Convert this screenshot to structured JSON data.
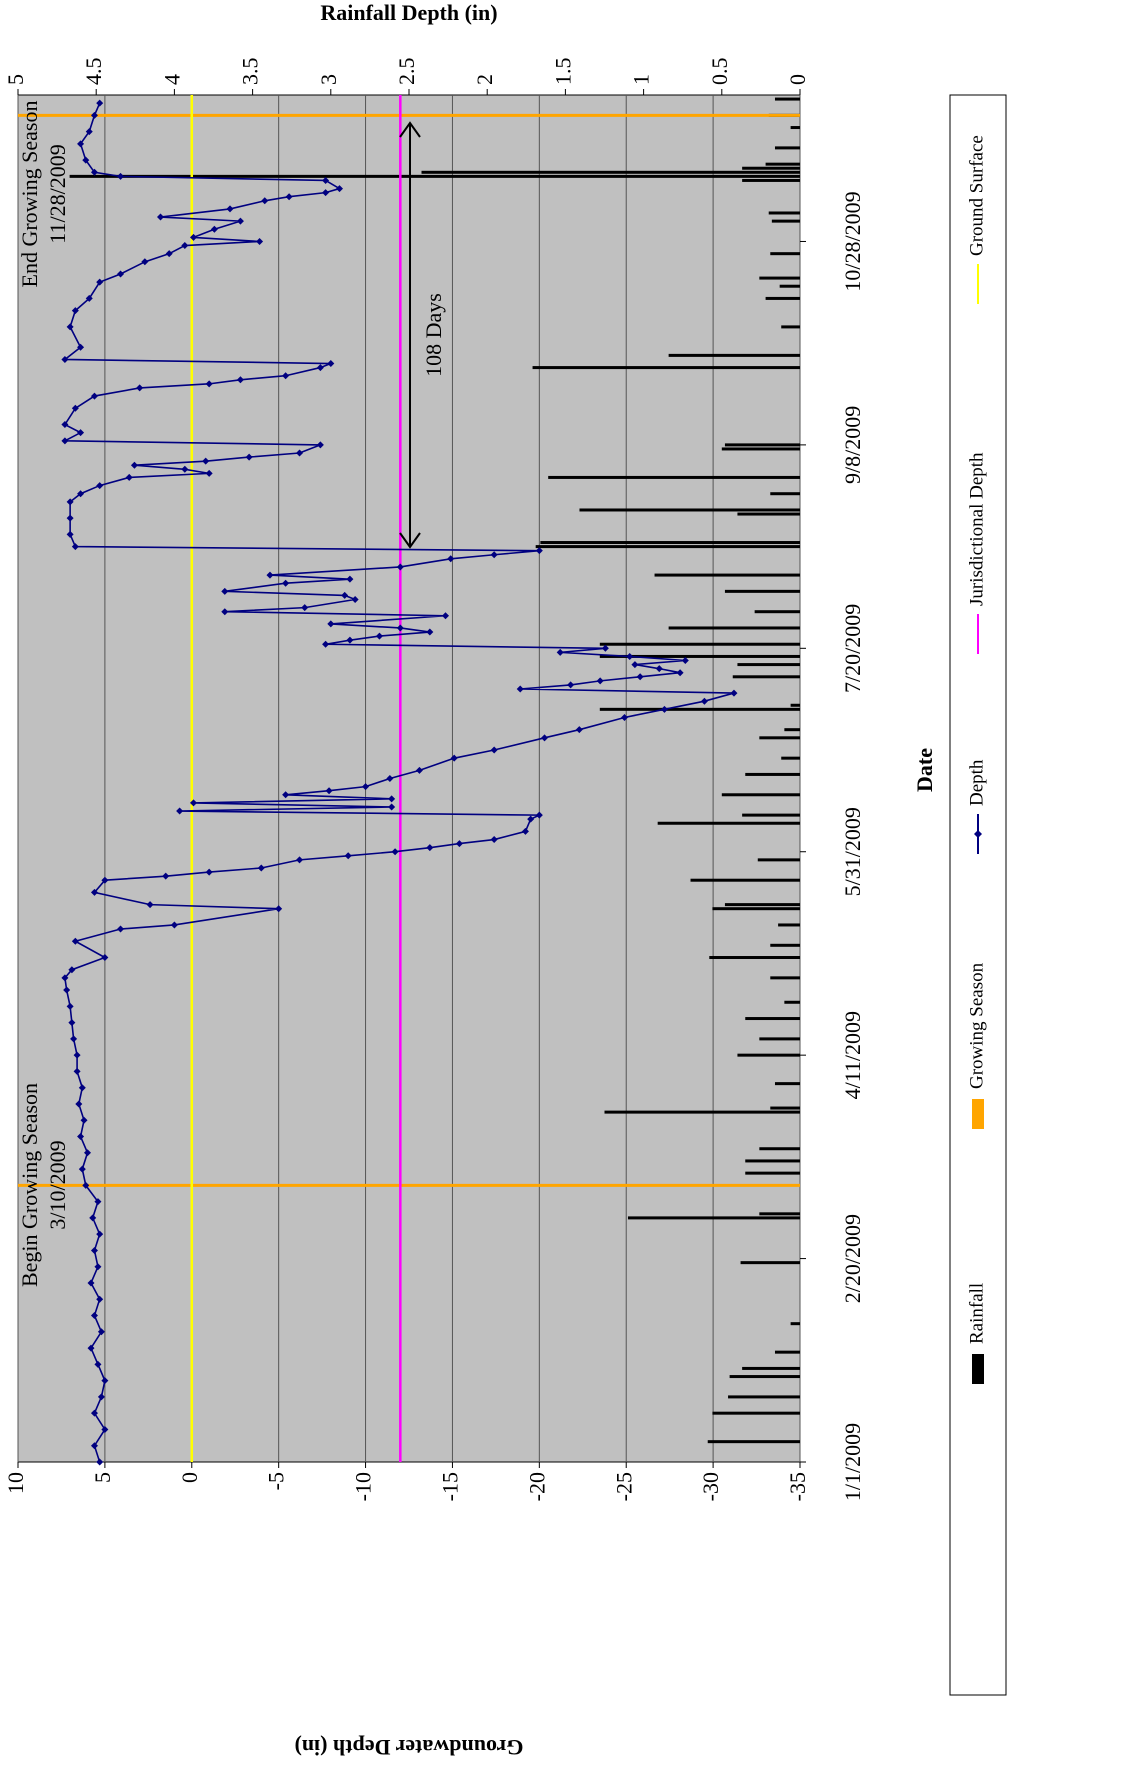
{
  "chart_data": {
    "type": "line",
    "x_label": "Date",
    "y_label": "Groundwater Depth (in)",
    "y2_label": "Rainfall Depth (in)",
    "xlim": [
      "1/1/2009",
      "12/3/2009"
    ],
    "xticks": [
      "1/1/2009",
      "2/20/2009",
      "4/11/2009",
      "5/31/2009",
      "7/20/2009",
      "9/8/2009",
      "10/28/2009"
    ],
    "ylim": [
      -35,
      10
    ],
    "yticks": [
      -35,
      -30,
      -25,
      -20,
      -15,
      -10,
      -5,
      0,
      5,
      10
    ],
    "y2lim": [
      0,
      5
    ],
    "y2ticks": [
      0,
      0.5,
      1,
      1.5,
      2,
      2.5,
      3,
      3.5,
      4,
      4.5,
      5
    ],
    "grid": true,
    "legend": "bottom",
    "background": "#c0c0c0",
    "series": [
      {
        "name": "Rainfall",
        "type": "bar",
        "axis": "y2",
        "color": "#000000",
        "x": [
          "1/6/2009",
          "1/13/2009",
          "1/17/2009",
          "1/22/2009",
          "1/24/2009",
          "1/28/2009",
          "2/4/2009",
          "2/19/2009",
          "3/2/2009",
          "3/3/2009",
          "3/13/2009",
          "3/16/2009",
          "3/19/2009",
          "3/28/2009",
          "3/29/2009",
          "4/4/2009",
          "4/11/2009",
          "4/15/2009",
          "4/20/2009",
          "4/24/2009",
          "4/30/2009",
          "5/5/2009",
          "5/8/2009",
          "5/13/2009",
          "5/17/2009",
          "5/18/2009",
          "5/24/2009",
          "5/29/2009",
          "6/7/2009",
          "6/9/2009",
          "6/14/2009",
          "6/19/2009",
          "6/23/2009",
          "6/28/2009",
          "6/30/2009",
          "7/5/2009",
          "7/6/2009",
          "7/13/2009",
          "7/16/2009",
          "7/18/2009",
          "7/21/2009",
          "7/25/2009",
          "7/29/2009",
          "8/3/2009",
          "8/7/2009",
          "8/14/2009",
          "8/15/2009",
          "8/22/2009",
          "8/23/2009",
          "8/27/2009",
          "8/31/2009",
          "9/7/2009",
          "9/8/2009",
          "9/27/2009",
          "9/30/2009",
          "10/7/2009",
          "10/14/2009",
          "10/17/2009",
          "10/19/2009",
          "10/25/2009",
          "11/2/2009",
          "11/4/2009",
          "11/12/2009",
          "11/13/2009",
          "11/14/2009",
          "11/15/2009",
          "11/16/2009",
          "11/20/2009",
          "11/25/2009",
          "11/28/2009",
          "12/2/2009"
        ],
        "values": [
          0.59,
          0.56,
          0.46,
          0.45,
          0.37,
          0.16,
          0.06,
          0.38,
          1.1,
          0.26,
          0.35,
          0.35,
          0.26,
          1.25,
          0.19,
          0.16,
          0.4,
          0.26,
          0.35,
          0.1,
          0.19,
          0.58,
          0.19,
          0.14,
          0.56,
          0.48,
          0.7,
          0.27,
          0.91,
          0.37,
          0.5,
          0.35,
          0.12,
          0.26,
          0.1,
          1.28,
          0.06,
          0.43,
          0.4,
          1.28,
          1.28,
          0.84,
          0.29,
          0.48,
          0.93,
          1.69,
          1.66,
          0.4,
          1.41,
          0.19,
          1.61,
          0.5,
          0.48,
          1.71,
          0.84,
          0.12,
          0.22,
          0.13,
          0.26,
          0.19,
          0.18,
          0.2,
          0.37,
          4.67,
          2.42,
          0.37,
          0.22,
          0.16,
          0.06,
          0.2,
          0.16
        ]
      },
      {
        "name": "Growing Season",
        "type": "vline",
        "color": "#ffa500",
        "x": [
          "3/10/2009",
          "11/28/2009"
        ]
      },
      {
        "name": "Depth",
        "type": "line",
        "color": "#000080",
        "x": [
          "1/1/2009",
          "1/5/2009",
          "1/9/2009",
          "1/13/2009",
          "1/17/2009",
          "1/21/2009",
          "1/25/2009",
          "1/29/2009",
          "2/2/2009",
          "2/6/2009",
          "2/10/2009",
          "2/14/2009",
          "2/18/2009",
          "2/22/2009",
          "2/26/2009",
          "3/2/2009",
          "3/6/2009",
          "3/10/2009",
          "3/14/2009",
          "3/18/2009",
          "3/22/2009",
          "3/26/2009",
          "3/30/2009",
          "4/3/2009",
          "4/7/2009",
          "4/11/2009",
          "4/15/2009",
          "4/19/2009",
          "4/23/2009",
          "4/27/2009",
          "4/30/2009",
          "5/2/2009",
          "5/5/2009",
          "5/9/2009",
          "5/12/2009",
          "5/13/2009",
          "5/17/2009",
          "5/18/2009",
          "5/21/2009",
          "5/24/2009",
          "5/25/2009",
          "5/26/2009",
          "5/27/2009",
          "5/29/2009",
          "5/30/2009",
          "5/31/2009",
          "6/1/2009",
          "6/2/2009",
          "6/3/2009",
          "6/5/2009",
          "6/8/2009",
          "6/9/2009",
          "6/10/2009",
          "6/11/2009",
          "6/12/2009",
          "6/13/2009",
          "6/14/2009",
          "6/15/2009",
          "6/16/2009",
          "6/18/2009",
          "6/20/2009",
          "6/23/2009",
          "6/25/2009",
          "6/28/2009",
          "6/30/2009",
          "7/3/2009",
          "7/5/2009",
          "7/7/2009",
          "7/9/2009",
          "7/10/2009",
          "7/11/2009",
          "7/12/2009",
          "7/13/2009",
          "7/14/2009",
          "7/15/2009",
          "7/16/2009",
          "7/17/2009",
          "7/18/2009",
          "7/19/2009",
          "7/20/2009",
          "7/21/2009",
          "7/22/2009",
          "7/23/2009",
          "7/24/2009",
          "7/25/2009",
          "7/26/2009",
          "7/28/2009",
          "7/29/2009",
          "7/30/2009",
          "8/1/2009",
          "8/2/2009",
          "8/3/2009",
          "8/5/2009",
          "8/6/2009",
          "8/7/2009",
          "8/9/2009",
          "8/11/2009",
          "8/12/2009",
          "8/13/2009",
          "8/14/2009",
          "8/17/2009",
          "8/21/2009",
          "8/25/2009",
          "8/27/2009",
          "8/29/2009",
          "8/31/2009",
          "9/1/2009",
          "9/2/2009",
          "9/3/2009",
          "9/4/2009",
          "9/5/2009",
          "9/6/2009",
          "9/8/2009",
          "9/9/2009",
          "9/11/2009",
          "9/13/2009",
          "9/17/2009",
          "9/20/2009",
          "9/22/2009",
          "9/23/2009",
          "9/24/2009",
          "9/25/2009",
          "9/27/2009",
          "9/28/2009",
          "9/29/2009",
          "10/2/2009",
          "10/7/2009",
          "10/11/2009",
          "10/14/2009",
          "10/18/2009",
          "10/20/2009",
          "10/23/2009",
          "10/25/2009",
          "10/27/2009",
          "10/28/2009",
          "10/29/2009",
          "10/31/2009",
          "11/2/2009",
          "11/3/2009",
          "11/5/2009",
          "11/7/2009",
          "11/8/2009",
          "11/9/2009",
          "11/10/2009",
          "11/12/2009",
          "11/13/2009",
          "11/14/2009",
          "11/17/2009",
          "11/21/2009",
          "11/24/2009",
          "11/28/2009",
          "12/1/2009"
        ],
        "values": [
          5.3,
          5.6,
          5.0,
          5.6,
          5.2,
          5.0,
          5.4,
          5.8,
          5.2,
          5.6,
          5.3,
          5.8,
          5.4,
          5.6,
          5.3,
          5.7,
          5.4,
          6.1,
          6.3,
          6.0,
          6.4,
          6.2,
          6.5,
          6.3,
          6.6,
          6.6,
          6.8,
          6.9,
          7.0,
          7.2,
          7.3,
          6.9,
          5.0,
          6.7,
          4.1,
          1.0,
          -5.0,
          2.4,
          5.6,
          5.0,
          1.5,
          -1.0,
          -4.0,
          -6.2,
          -9.0,
          -11.7,
          -13.7,
          -15.4,
          -17.4,
          -19.2,
          -19.5,
          -20.0,
          0.7,
          -11.5,
          -0.1,
          -11.5,
          -5.4,
          -7.9,
          -10.0,
          -11.4,
          -13.1,
          -15.1,
          -17.4,
          -20.3,
          -22.3,
          -24.9,
          -27.2,
          -29.5,
          -31.2,
          -18.9,
          -21.8,
          -23.5,
          -25.8,
          -28.1,
          -26.9,
          -25.5,
          -28.4,
          -25.2,
          -21.2,
          -23.8,
          -7.7,
          -9.1,
          -10.8,
          -13.7,
          -12.0,
          -8.0,
          -14.6,
          -1.9,
          -6.5,
          -9.4,
          -8.8,
          -1.9,
          -5.4,
          -9.1,
          -4.5,
          -12.0,
          -14.9,
          -17.4,
          -20.0,
          6.7,
          7.0,
          7.0,
          7.0,
          6.4,
          5.3,
          3.6,
          -1.0,
          0.4,
          3.3,
          -0.8,
          -3.3,
          -6.2,
          -7.4,
          7.3,
          6.4,
          7.3,
          6.7,
          5.6,
          3.0,
          -1.0,
          -2.8,
          -5.4,
          -7.4,
          -8.0,
          7.3,
          6.4,
          7.0,
          6.7,
          5.9,
          5.3,
          4.1,
          2.7,
          1.3,
          0.4,
          -3.9,
          -0.1,
          -1.3,
          -2.8,
          1.8,
          -2.2,
          -4.2,
          -5.6,
          -7.7,
          -8.5,
          -7.7,
          4.1,
          5.6,
          6.1,
          6.4,
          5.9,
          5.6,
          5.3
        ]
      },
      {
        "name": "Jurisdictional Depth",
        "type": "hline",
        "color": "#ff00ff",
        "values": [
          -12
        ]
      },
      {
        "name": "Ground Surface",
        "type": "hline",
        "color": "#ffff00",
        "values": [
          0
        ]
      }
    ],
    "annotations": [
      {
        "lines": [
          "Begin Growing Season",
          "3/10/2009"
        ]
      },
      {
        "lines": [
          "End Growing Season",
          "11/28/2009"
        ]
      },
      {
        "text": "108 Days"
      }
    ]
  }
}
